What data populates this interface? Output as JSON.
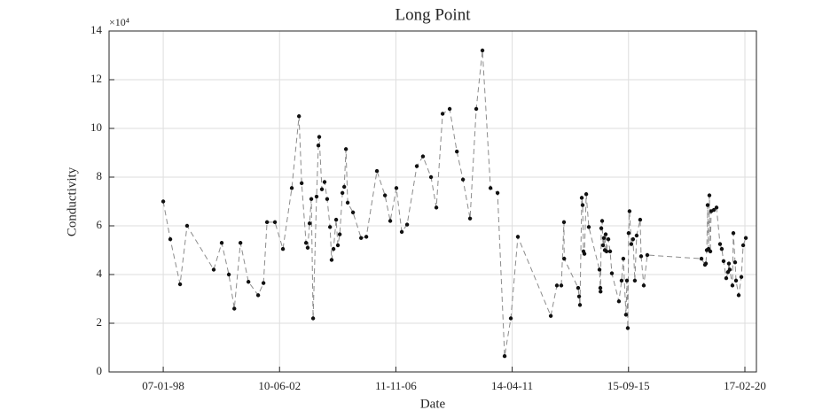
{
  "chart_data": {
    "type": "line",
    "title": "Long Point",
    "x_label": "Date",
    "y_label": "Conductivity",
    "y_exponent": "×10⁴",
    "xlim": [
      "1995-12-17",
      "2020-07-26"
    ],
    "xticks": [
      {
        "value": "1998-01-07",
        "label": "07-01-98"
      },
      {
        "value": "2002-06-10",
        "label": "10-06-02"
      },
      {
        "value": "2006-11-11",
        "label": "11-11-06"
      },
      {
        "value": "2011-04-14",
        "label": "14-04-11"
      },
      {
        "value": "2015-09-15",
        "label": "15-09-15"
      },
      {
        "value": "2020-02-17",
        "label": "17-02-20"
      }
    ],
    "ylim": [
      0,
      140000
    ],
    "yticks": [
      {
        "value": 0,
        "label": "0"
      },
      {
        "value": 20000,
        "label": "2"
      },
      {
        "value": 40000,
        "label": "4"
      },
      {
        "value": 60000,
        "label": "6"
      },
      {
        "value": 80000,
        "label": "8"
      },
      {
        "value": 100000,
        "label": "10"
      },
      {
        "value": 120000,
        "label": "12"
      },
      {
        "value": 140000,
        "label": "14"
      }
    ],
    "grid": true,
    "line_color": "#8c8c8c",
    "marker_color": "#111111",
    "x": [
      "1998-01-07",
      "1998-04-15",
      "1998-08-29",
      "1998-12-04",
      "1999-12-09",
      "2000-03-29",
      "2000-07-06",
      "2000-09-20",
      "2000-12-14",
      "2001-04-04",
      "2001-08-17",
      "2001-10-30",
      "2001-12-18",
      "2002-04-07",
      "2002-07-27",
      "2002-11-27",
      "2003-03-07",
      "2003-04-13",
      "2003-06-13",
      "2003-07-06",
      "2003-08-01",
      "2003-08-25",
      "2003-09-19",
      "2003-11-06",
      "2003-12-01",
      "2003-12-13",
      "2004-01-19",
      "2004-02-25",
      "2004-04-01",
      "2004-05-11",
      "2004-06-02",
      "2004-06-28",
      "2004-08-04",
      "2004-08-28",
      "2004-09-23",
      "2004-10-30",
      "2004-11-24",
      "2004-12-18",
      "2005-01-11",
      "2005-03-26",
      "2005-07-16",
      "2005-09-27",
      "2006-02-21",
      "2006-06-13",
      "2006-08-25",
      "2006-11-18",
      "2007-02-01",
      "2007-04-16",
      "2007-08-29",
      "2007-11-22",
      "2008-03-13",
      "2008-05-26",
      "2008-08-21",
      "2008-11-27",
      "2009-03-07",
      "2009-05-31",
      "2009-09-06",
      "2009-12-01",
      "2010-02-25",
      "2010-06-17",
      "2010-09-23",
      "2010-12-30",
      "2011-03-26",
      "2011-07-02",
      "2012-10-01",
      "2012-12-25",
      "2013-02-24",
      "2013-04-02",
      "2013-04-05",
      "2013-10-16",
      "2013-10-29",
      "2013-11-10",
      "2013-12-05",
      "2013-12-17",
      "2013-12-29",
      "2014-01-11",
      "2014-02-05",
      "2014-03-13",
      "2014-08-08",
      "2014-08-20",
      "2014-08-23",
      "2014-09-02",
      "2014-09-14",
      "2014-09-26",
      "2014-10-08",
      "2014-10-21",
      "2014-11-02",
      "2014-11-14",
      "2014-12-09",
      "2015-01-03",
      "2015-01-27",
      "2015-05-05",
      "2015-06-11",
      "2015-07-05",
      "2015-08-11",
      "2015-08-24",
      "2015-09-05",
      "2015-09-17",
      "2015-09-29",
      "2015-10-24",
      "2015-11-17",
      "2015-12-12",
      "2016-01-06",
      "2016-02-24",
      "2016-03-08",
      "2016-04-14",
      "2016-06-02",
      "2018-06-24",
      "2018-08-12",
      "2018-08-24",
      "2018-09-06",
      "2018-09-18",
      "2018-09-30",
      "2018-10-12",
      "2018-10-25",
      "2018-11-06",
      "2018-12-13",
      "2019-01-19",
      "2019-03-09",
      "2019-04-02",
      "2019-04-27",
      "2019-06-03",
      "2019-06-27",
      "2019-07-10",
      "2019-07-22",
      "2019-08-28",
      "2019-09-10",
      "2019-10-04",
      "2019-10-17",
      "2019-11-23",
      "2019-12-30",
      "2020-01-24",
      "2020-03-01"
    ],
    "values": [
      70000,
      54500,
      36000,
      60000,
      42000,
      53000,
      40000,
      26000,
      53000,
      37000,
      31500,
      36500,
      61500,
      61500,
      50500,
      75500,
      105000,
      77500,
      53000,
      51000,
      61000,
      71000,
      22000,
      72000,
      93000,
      96500,
      75000,
      78000,
      71000,
      59500,
      46000,
      50500,
      62500,
      52000,
      56500,
      73500,
      76000,
      91500,
      69500,
      65500,
      55000,
      55500,
      82500,
      72500,
      62000,
      75500,
      57500,
      60500,
      84500,
      88500,
      80000,
      67500,
      106000,
      108000,
      90500,
      79000,
      63000,
      108000,
      132000,
      75500,
      73500,
      6500,
      22000,
      55500,
      23000,
      35500,
      35500,
      61500,
      46500,
      34500,
      31000,
      27500,
      71500,
      68500,
      49500,
      48500,
      73000,
      59500,
      42000,
      34500,
      33000,
      59000,
      62000,
      52000,
      55000,
      50000,
      56500,
      49500,
      54500,
      49500,
      40500,
      29000,
      37500,
      46500,
      23500,
      37500,
      18000,
      57000,
      66000,
      52500,
      54500,
      37500,
      56000,
      62500,
      47500,
      35500,
      48000,
      46500,
      44000,
      44500,
      50000,
      68500,
      50500,
      72500,
      49500,
      66000,
      66500,
      67500,
      52500,
      50500,
      45500,
      38500,
      41000,
      44500,
      42000,
      35500,
      57000,
      45000,
      37500,
      31500,
      39000,
      52000,
      55000
    ]
  }
}
